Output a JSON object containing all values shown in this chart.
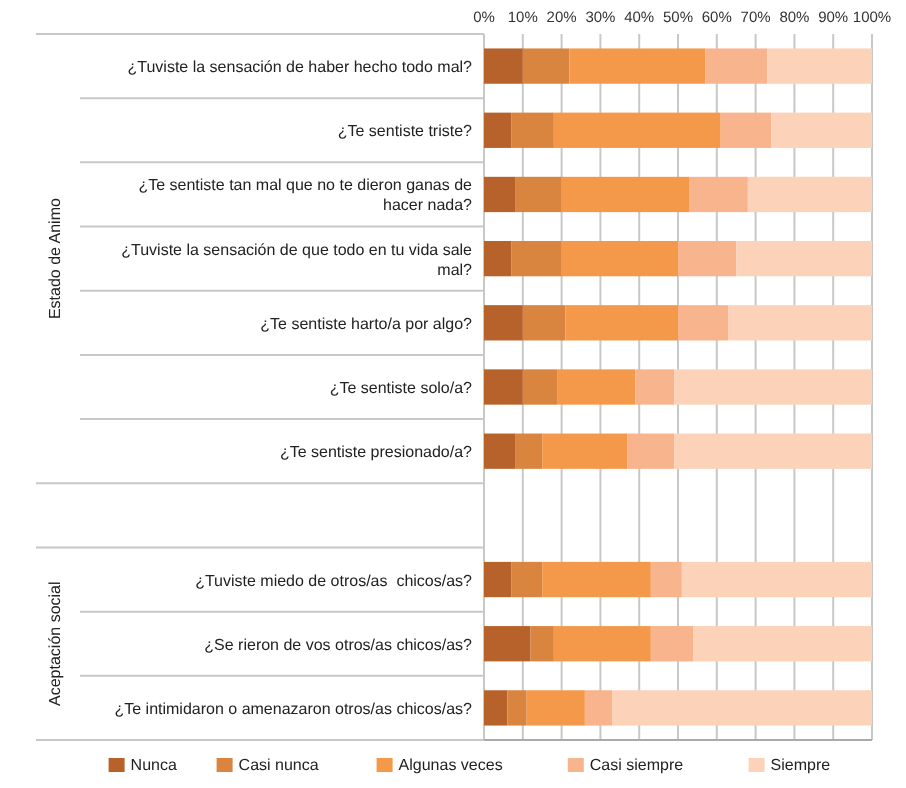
{
  "chart_data": {
    "type": "bar",
    "orientation": "horizontal",
    "stacked": true,
    "categories": [
      "¿Tuviste la sensación de haber hecho todo mal?",
      "¿Te sentiste triste?",
      "¿Te sentiste tan mal que no te dieron ganas de hacer nada?",
      "¿Tuviste la sensación de que todo en tu vida sale mal?",
      "¿Te sentiste harto/a por algo?",
      "¿Te sentiste solo/a?",
      "¿Te sentiste presionado/a?",
      null,
      "¿Tuviste miedo de otros/as  chicos/as?",
      "¿Se rieron de vos otros/as chicos/as?",
      "¿Te intimidaron o amenazaron otros/as chicos/as?"
    ],
    "series": [
      {
        "name": "Nunca",
        "color": "#b8622b",
        "values": [
          10,
          7,
          8,
          7,
          10,
          10,
          8,
          null,
          7,
          12,
          6
        ]
      },
      {
        "name": "Casi nunca",
        "color": "#d9843f",
        "values": [
          12,
          11,
          12,
          13,
          11,
          9,
          7,
          null,
          8,
          6,
          5
        ]
      },
      {
        "name": "Algunas veces",
        "color": "#f4994a",
        "values": [
          35,
          43,
          33,
          30,
          29,
          20,
          22,
          null,
          28,
          25,
          15
        ]
      },
      {
        "name": "Casi siempre",
        "color": "#f8b48d",
        "values": [
          16,
          13,
          15,
          15,
          13,
          10,
          12,
          null,
          8,
          11,
          7
        ]
      },
      {
        "name": "Siempre",
        "color": "#fcd2b8",
        "values": [
          27,
          26,
          32,
          35,
          37,
          51,
          51,
          null,
          49,
          46,
          67
        ]
      }
    ],
    "xlim": [
      0,
      100
    ],
    "xticks": [
      {
        "value": 0,
        "label": "0%"
      },
      {
        "value": 10,
        "label": "10%"
      },
      {
        "value": 20,
        "label": "20%"
      },
      {
        "value": 30,
        "label": "30%"
      },
      {
        "value": 40,
        "label": "40%"
      },
      {
        "value": 50,
        "label": "50%"
      },
      {
        "value": 60,
        "label": "60%"
      },
      {
        "value": 70,
        "label": "70%"
      },
      {
        "value": 80,
        "label": "80%"
      },
      {
        "value": 90,
        "label": "90%"
      },
      {
        "value": 100,
        "label": "100%"
      }
    ],
    "grid": "x",
    "legend": "bottom",
    "annotations": [
      "Estado de Animo",
      "Aceptación social"
    ]
  }
}
